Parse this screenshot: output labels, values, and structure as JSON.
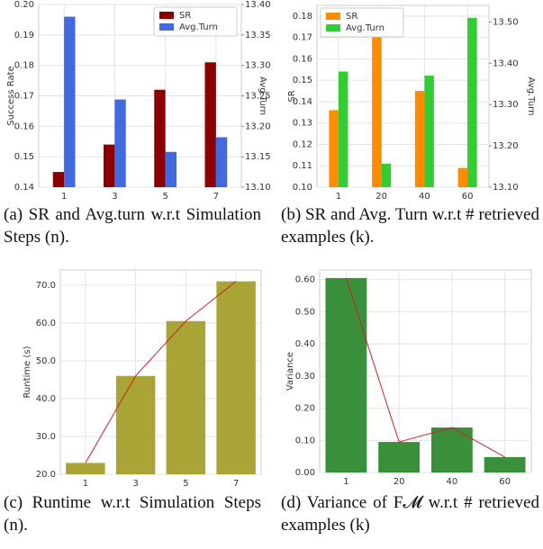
{
  "chart_data": [
    {
      "type": "bar",
      "caption": "(a) SR and Avg.turn w.r.t Simulation Steps (n).",
      "ylabel": "Success Rate",
      "y2label": "Avg.Turn",
      "categories": [
        "1",
        "3",
        "5",
        "7"
      ],
      "series": [
        {
          "name": "SR",
          "color": "#8b0000",
          "values": [
            0.145,
            0.154,
            0.172,
            0.181
          ]
        },
        {
          "name": "Avg.Turn",
          "color": "#4169e1",
          "axis": "y2",
          "values": [
            13.38,
            13.244,
            13.158,
            13.182
          ]
        }
      ],
      "ylim": [
        0.14,
        0.2
      ],
      "yticks": [
        0.14,
        0.15,
        0.16,
        0.17,
        0.18,
        0.19,
        {
          "value": 0.2,
          "label": "0.20"
        }
      ],
      "y2lim": [
        13.1,
        13.4
      ],
      "y2ticks": [
        {
          "value": 13.1,
          "label": "13.10"
        },
        13.15,
        {
          "value": 13.2,
          "label": "13.20"
        },
        13.25,
        {
          "value": 13.3,
          "label": "13.30"
        },
        13.35,
        {
          "value": 13.4,
          "label": "13.40"
        }
      ],
      "legend": "upper right",
      "grid": true
    },
    {
      "type": "bar",
      "caption": "(b) SR and Avg. Turn w.r.t # retrieved examples (k).",
      "ylabel": "SR",
      "y2label": "Avg.Turn",
      "categories": [
        "1",
        "20",
        "40",
        "60"
      ],
      "series": [
        {
          "name": "SR",
          "color": "#ff8c00",
          "values": [
            0.136,
            0.171,
            0.145,
            0.109
          ]
        },
        {
          "name": "Avg.Turn",
          "color": "#32cd32",
          "axis": "y2",
          "values": [
            13.38,
            13.157,
            13.37,
            13.51
          ]
        }
      ],
      "ylim": [
        0.1,
        0.185
      ],
      "yticks": [
        {
          "value": 0.1,
          "label": "0.10"
        },
        0.11,
        0.12,
        0.13,
        0.14,
        0.15,
        0.16,
        0.17,
        0.18
      ],
      "y2lim": [
        13.1,
        13.54
      ],
      "y2ticks": [
        {
          "value": 13.1,
          "label": "13.10"
        },
        {
          "value": 13.2,
          "label": "13.20"
        },
        {
          "value": 13.3,
          "label": "13.30"
        },
        {
          "value": 13.4,
          "label": "13.40"
        },
        {
          "value": 13.5,
          "label": "13.50"
        }
      ],
      "legend": "upper left",
      "grid": true
    },
    {
      "type": "bar",
      "caption": "(c) Runtime w.r.t Simulation Steps (n).",
      "ylabel": "Runtime (s)",
      "categories": [
        "1",
        "3",
        "5",
        "7"
      ],
      "values": [
        23,
        46,
        60.5,
        71
      ],
      "color": "#a8a536",
      "line_color": "#cc2222",
      "ylim": [
        20,
        74
      ],
      "yticks": [
        {
          "value": 20,
          "label": "20.0"
        },
        {
          "value": 30,
          "label": "30.0"
        },
        {
          "value": 40,
          "label": "40.0"
        },
        {
          "value": 50,
          "label": "50.0"
        },
        {
          "value": 60,
          "label": "60.0"
        },
        {
          "value": 70,
          "label": "70.0"
        }
      ],
      "grid": true
    },
    {
      "type": "bar",
      "caption": "(d) Variance of F𝓜 w.r.t # retrieved examples (k)",
      "ylabel": "Variance",
      "categories": [
        "1",
        "20",
        "40",
        "60"
      ],
      "values": [
        0.605,
        0.095,
        0.14,
        0.048
      ],
      "color": "#3a8f3a",
      "line_color": "#cc2222",
      "ylim": [
        0,
        0.63
      ],
      "yticks": [
        {
          "value": 0,
          "label": "0.00"
        },
        {
          "value": 0.1,
          "label": "0.10"
        },
        {
          "value": 0.2,
          "label": "0.20"
        },
        {
          "value": 0.3,
          "label": "0.30"
        },
        {
          "value": 0.4,
          "label": "0.40"
        },
        {
          "value": 0.5,
          "label": "0.50"
        },
        {
          "value": 0.6,
          "label": "0.60"
        }
      ],
      "grid": true
    }
  ]
}
